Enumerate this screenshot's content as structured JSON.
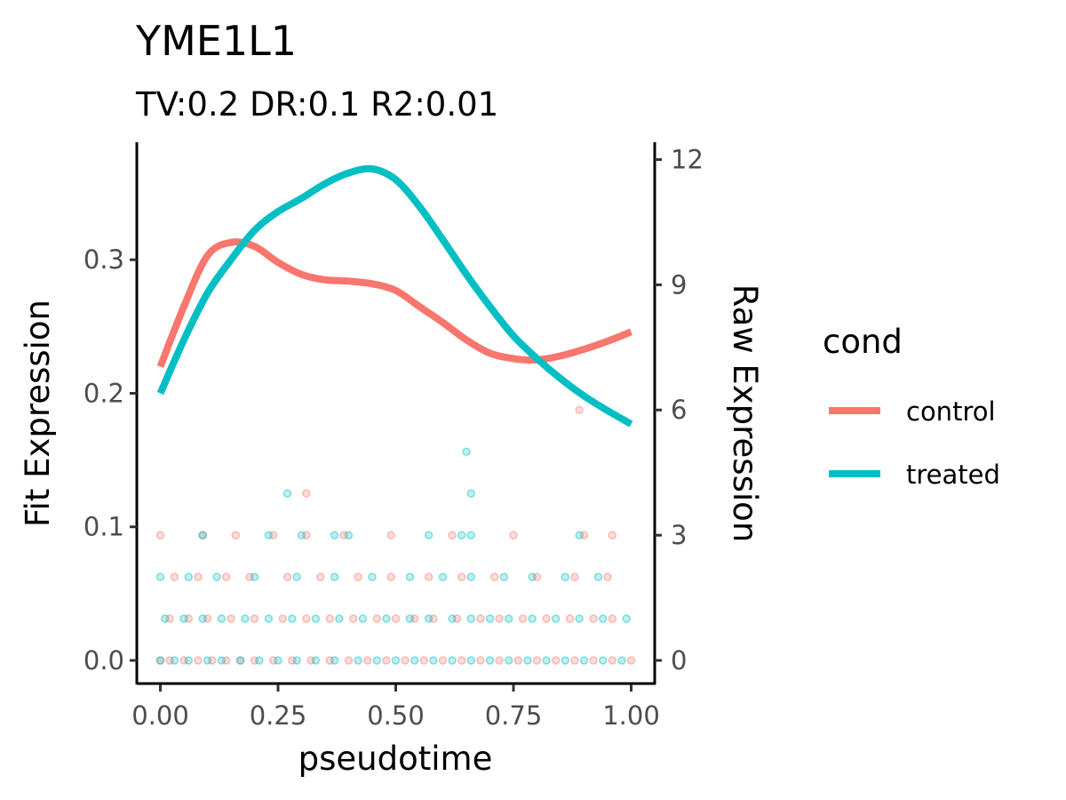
{
  "chart_data": {
    "type": "line",
    "title": "YME1L1",
    "subtitle": "TV:0.2 DR:0.1 R2:0.01",
    "xlabel": "pseudotime",
    "ylabel": "Fit Expression",
    "ylabel_right": "Raw Expression",
    "xlim": [
      -0.05,
      1.05
    ],
    "ylim": [
      -0.018,
      0.388
    ],
    "ylim_right": [
      -0.576,
      12.416
    ],
    "x_ticks": [
      "0.00",
      "0.25",
      "0.50",
      "0.75",
      "1.00"
    ],
    "x_tick_values": [
      0,
      0.25,
      0.5,
      0.75,
      1.0
    ],
    "y_ticks": [
      "0.0",
      "0.1",
      "0.2",
      "0.3"
    ],
    "y_tick_values": [
      0,
      0.1,
      0.2,
      0.3
    ],
    "y_right_ticks": [
      "0",
      "3",
      "6",
      "9",
      "12"
    ],
    "y_right_tick_values": [
      0,
      3,
      6,
      9,
      12
    ],
    "grid": false,
    "legend": {
      "title": "cond",
      "position": "right"
    },
    "series": [
      {
        "name": "control",
        "color": "#F8766D",
        "x": [
          0,
          0.05,
          0.1,
          0.15,
          0.2,
          0.25,
          0.3,
          0.35,
          0.4,
          0.45,
          0.5,
          0.55,
          0.6,
          0.65,
          0.7,
          0.75,
          0.8,
          0.85,
          0.9,
          0.95,
          1.0
        ],
        "y": [
          0.22,
          0.265,
          0.303,
          0.313,
          0.31,
          0.298,
          0.289,
          0.285,
          0.284,
          0.282,
          0.277,
          0.265,
          0.253,
          0.24,
          0.23,
          0.226,
          0.225,
          0.228,
          0.233,
          0.239,
          0.246
        ]
      },
      {
        "name": "treated",
        "color": "#00BFC4",
        "x": [
          0,
          0.05,
          0.1,
          0.15,
          0.2,
          0.25,
          0.3,
          0.35,
          0.4,
          0.45,
          0.5,
          0.55,
          0.6,
          0.65,
          0.7,
          0.75,
          0.8,
          0.85,
          0.9,
          0.95,
          1.0
        ],
        "y": [
          0.2,
          0.24,
          0.275,
          0.3,
          0.322,
          0.336,
          0.346,
          0.357,
          0.365,
          0.368,
          0.36,
          0.34,
          0.315,
          0.289,
          0.265,
          0.243,
          0.226,
          0.211,
          0.198,
          0.187,
          0.177
        ]
      }
    ],
    "points": [
      {
        "name": "control",
        "color": "#F8766D",
        "raw_levels": [
          0,
          1,
          2,
          3,
          4,
          6
        ],
        "x": {
          "0": [
            0.0,
            0.02,
            0.05,
            0.08,
            0.11,
            0.14,
            0.17,
            0.2,
            0.24,
            0.28,
            0.32,
            0.36,
            0.4,
            0.44,
            0.48,
            0.52,
            0.56,
            0.6,
            0.64,
            0.68,
            0.72,
            0.76,
            0.8,
            0.84,
            0.88,
            0.92,
            0.96,
            1.0
          ],
          "1": [
            0.02,
            0.06,
            0.1,
            0.15,
            0.2,
            0.26,
            0.31,
            0.36,
            0.41,
            0.46,
            0.5,
            0.54,
            0.58,
            0.63,
            0.68,
            0.72,
            0.77,
            0.82,
            0.87,
            0.92,
            0.96
          ],
          "2": [
            0.03,
            0.08,
            0.14,
            0.19,
            0.27,
            0.34,
            0.42,
            0.49,
            0.57,
            0.64,
            0.71,
            0.8,
            0.88,
            0.95
          ],
          "3": [
            0.0,
            0.09,
            0.16,
            0.24,
            0.31,
            0.39,
            0.49,
            0.62,
            0.75,
            0.9,
            0.96
          ],
          "4": [
            0.31
          ],
          "6": [
            0.89
          ]
        }
      },
      {
        "name": "treated",
        "color": "#00BFC4",
        "raw_levels": [
          0,
          1,
          2,
          3,
          4,
          5
        ],
        "x": {
          "0": [
            0.0,
            0.03,
            0.06,
            0.1,
            0.13,
            0.17,
            0.21,
            0.25,
            0.29,
            0.33,
            0.37,
            0.42,
            0.46,
            0.5,
            0.54,
            0.58,
            0.62,
            0.66,
            0.7,
            0.74,
            0.78,
            0.82,
            0.86,
            0.9,
            0.94,
            0.98
          ],
          "1": [
            0.01,
            0.05,
            0.09,
            0.13,
            0.18,
            0.23,
            0.28,
            0.33,
            0.38,
            0.43,
            0.48,
            0.53,
            0.57,
            0.62,
            0.66,
            0.7,
            0.74,
            0.79,
            0.84,
            0.89,
            0.94,
            0.99
          ],
          "2": [
            0.0,
            0.06,
            0.12,
            0.2,
            0.29,
            0.37,
            0.45,
            0.53,
            0.6,
            0.66,
            0.73,
            0.79,
            0.86,
            0.93
          ],
          "3": [
            0.09,
            0.23,
            0.3,
            0.37,
            0.4,
            0.57,
            0.64,
            0.66,
            0.89
          ],
          "4": [
            0.27,
            0.66
          ],
          "5": [
            0.65
          ]
        }
      }
    ]
  }
}
